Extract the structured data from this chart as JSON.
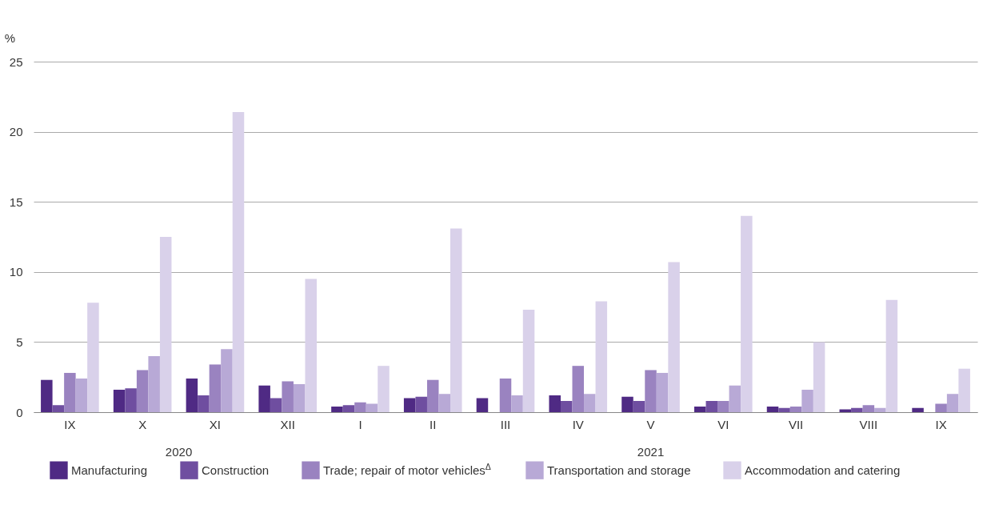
{
  "chart_data": {
    "type": "bar",
    "ylabel": "%",
    "categories": [
      "IX",
      "X",
      "XI",
      "XII",
      "I",
      "II",
      "III",
      "IV",
      "V",
      "VI",
      "VII",
      "VIII",
      "IX"
    ],
    "series": [
      {
        "name": "Manufacturing",
        "color": "#4f2a84",
        "values": [
          2.3,
          1.6,
          2.4,
          1.9,
          0.4,
          1.0,
          1.0,
          1.2,
          1.1,
          0.4,
          0.4,
          0.2,
          0.3
        ]
      },
      {
        "name": "Construction",
        "color": "#6f4ea0",
        "values": [
          0.5,
          1.7,
          1.2,
          1.0,
          0.5,
          1.1,
          null,
          0.8,
          0.8,
          0.8,
          0.3,
          0.3,
          null
        ]
      },
      {
        "name": "Trade; repair of motor vehicles$^{Δ}$",
        "color": "#9a83c0",
        "values": [
          2.8,
          3.0,
          3.4,
          2.2,
          0.7,
          2.3,
          2.4,
          3.3,
          3.0,
          0.8,
          0.4,
          0.5,
          0.6
        ]
      },
      {
        "name": "Transportation and storage",
        "color": "#b8a9d6",
        "values": [
          2.4,
          4.0,
          4.5,
          2.0,
          0.6,
          1.3,
          1.2,
          1.3,
          2.8,
          1.9,
          1.6,
          0.3,
          1.3
        ]
      },
      {
        "name": "Accommodation and catering",
        "color": "#d9d1ea",
        "values": [
          7.8,
          12.5,
          21.4,
          9.5,
          3.3,
          13.1,
          7.3,
          7.9,
          10.7,
          14.0,
          5.0,
          8.0,
          3.1
        ]
      }
    ],
    "ylim": [
      0,
      25
    ],
    "yticks": [
      0,
      5,
      10,
      15,
      20,
      25
    ],
    "grid": "y",
    "legend": "bottom",
    "annotations": [
      "2020",
      "2021"
    ]
  }
}
